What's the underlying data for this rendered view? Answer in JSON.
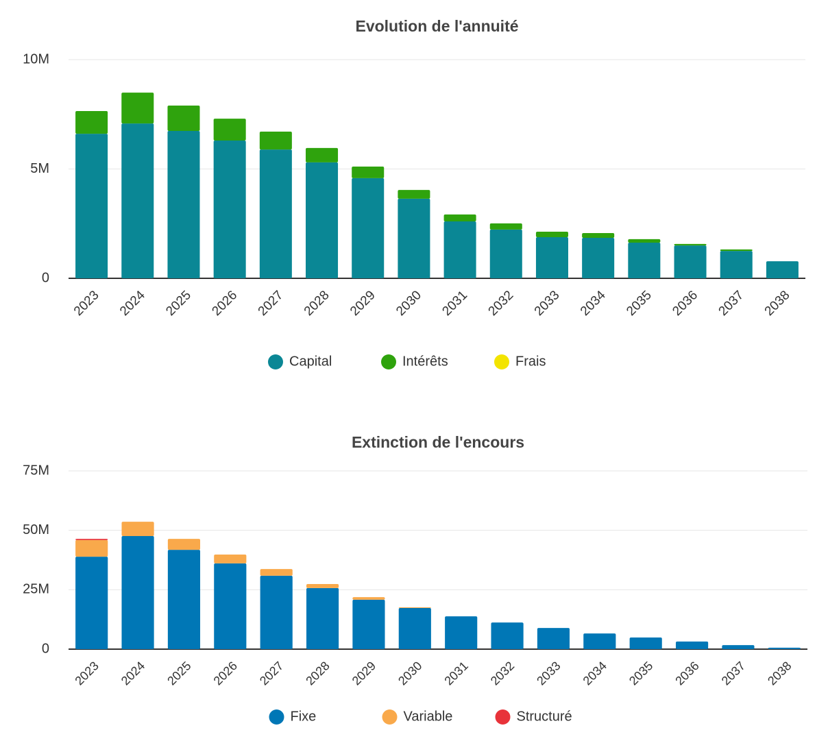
{
  "chart_data": [
    {
      "type": "stacked-bar",
      "title": "Evolution de l'annuité",
      "categories": [
        "2023",
        "2024",
        "2025",
        "2026",
        "2027",
        "2028",
        "2029",
        "2030",
        "2031",
        "2032",
        "2033",
        "2034",
        "2035",
        "2036",
        "2037",
        "2038"
      ],
      "series": [
        {
          "name": "Capital",
          "color": "#0a8795",
          "values": [
            6.61,
            7.08,
            6.74,
            6.3,
            5.89,
            5.3,
            4.58,
            3.64,
            2.6,
            2.23,
            1.88,
            1.85,
            1.63,
            1.5,
            1.25,
            0.78
          ]
        },
        {
          "name": "Intérêts",
          "color": "#2fa30d",
          "values": [
            1.04,
            1.41,
            1.16,
            1.0,
            0.82,
            0.66,
            0.53,
            0.4,
            0.32,
            0.28,
            0.25,
            0.22,
            0.16,
            0.07,
            0.07,
            0
          ]
        },
        {
          "name": "Frais",
          "color": "#f3e400",
          "values": [
            0,
            0,
            0,
            0,
            0,
            0,
            0,
            0,
            0,
            0,
            0,
            0,
            0,
            0,
            0,
            0
          ]
        }
      ],
      "ylim": [
        0,
        10
      ],
      "yticks": [
        0,
        {
          "value": 5,
          "label": "5M"
        },
        {
          "value": 10,
          "label": "10M"
        }
      ],
      "grid": true,
      "legend": "bottom"
    },
    {
      "type": "stacked-bar",
      "title": "Extinction de l'encours",
      "categories": [
        "2023",
        "2024",
        "2025",
        "2026",
        "2027",
        "2028",
        "2029",
        "2030",
        "2031",
        "2032",
        "2033",
        "2034",
        "2035",
        "2036",
        "2037",
        "2038"
      ],
      "series": [
        {
          "name": "Fixe",
          "color": "#0077b6",
          "values": [
            38.9,
            47.6,
            41.8,
            36.1,
            30.9,
            25.7,
            20.8,
            17.3,
            13.8,
            11.2,
            8.9,
            6.6,
            4.9,
            3.2,
            1.7,
            0.6
          ]
        },
        {
          "name": "Variable",
          "color": "#f9a94b",
          "values": [
            7.0,
            6.0,
            4.6,
            3.7,
            2.8,
            1.7,
            1.1,
            0.3,
            0,
            0,
            0,
            0,
            0,
            0,
            0,
            0
          ]
        },
        {
          "name": "Structuré",
          "color": "#e8333a",
          "values": [
            0.5,
            0,
            0,
            0,
            0,
            0,
            0,
            0,
            0,
            0,
            0,
            0,
            0,
            0,
            0,
            0
          ]
        }
      ],
      "ylim": [
        0,
        75
      ],
      "yticks": [
        0,
        {
          "value": 25,
          "label": "25M"
        },
        {
          "value": 50,
          "label": "50M"
        },
        {
          "value": 75,
          "label": "75M"
        }
      ],
      "grid": true,
      "legend": "bottom"
    }
  ]
}
